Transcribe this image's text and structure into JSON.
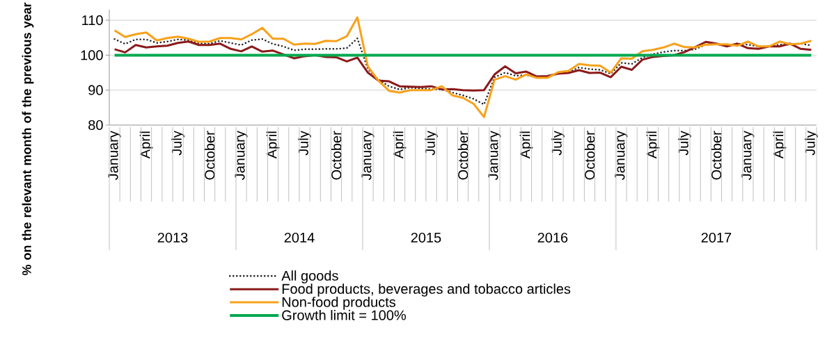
{
  "chart_data": {
    "type": "line",
    "ylabel": "% on the relevant month of the previous year",
    "categories": [
      "January",
      null,
      null,
      "April",
      null,
      null,
      "July",
      null,
      null,
      "October",
      null,
      null,
      "January",
      null,
      null,
      "April",
      null,
      null,
      "July",
      null,
      null,
      "October",
      null,
      null,
      "January",
      null,
      null,
      "April",
      null,
      null,
      "July",
      null,
      null,
      "October",
      null,
      null,
      "January",
      null,
      null,
      "April",
      null,
      null,
      "July",
      null,
      null,
      "October",
      null,
      null,
      "January",
      null,
      null,
      "April",
      null,
      null,
      "July",
      null,
      null,
      "October",
      null,
      null,
      "January",
      null,
      null,
      "April",
      null,
      null,
      "July"
    ],
    "annotations": [
      "2013",
      "2014",
      "2015",
      "2016",
      "2017"
    ],
    "ylim": [
      80,
      113
    ],
    "yticks": [
      80,
      90,
      100,
      110
    ],
    "grid": "y",
    "legend": "bottom",
    "marker": "none",
    "series": [
      {
        "name": "All goods",
        "color": "#262626",
        "line_style": "dotted",
        "values": [
          104.6,
          103.2,
          104.5,
          104.5,
          103.5,
          103.9,
          104.5,
          104.3,
          103.3,
          103.3,
          104.1,
          103.5,
          102.9,
          104.3,
          104.6,
          103.2,
          102.5,
          101.4,
          101.7,
          101.7,
          101.8,
          101.8,
          102,
          104.8,
          96,
          93,
          91.1,
          90.2,
          90.7,
          90.5,
          90.3,
          90.2,
          89.3,
          88.5,
          87.5,
          85.9,
          93.7,
          95,
          94.1,
          94.3,
          93.7,
          93.9,
          94.7,
          95,
          96.5,
          96,
          95.8,
          94.7,
          97.8,
          97.5,
          99.3,
          100.3,
          100.9,
          101.3,
          101.3,
          101.7,
          103,
          103.1,
          102.7,
          103.3,
          103,
          102.5,
          102.5,
          103,
          103,
          103.3,
          102.8
        ]
      },
      {
        "name": "Food products, beverages and tobacco articles",
        "color": "#8b1a1a",
        "line_style": "solid",
        "values": [
          101.7,
          100.8,
          102.9,
          102.2,
          102.5,
          102.7,
          103.5,
          103.9,
          102.9,
          102.9,
          103.3,
          101.8,
          101.1,
          102.5,
          101,
          101.3,
          100.2,
          99.1,
          99.7,
          100,
          99.5,
          99.4,
          98.2,
          99.3,
          95,
          92.7,
          92.5,
          91.1,
          91,
          90.9,
          91.1,
          90.2,
          90.3,
          90,
          89.9,
          90,
          94.5,
          96.8,
          94.8,
          95.3,
          93.9,
          94,
          94.7,
          94.9,
          95.7,
          94.9,
          95,
          93.7,
          96.7,
          95.8,
          98.7,
          99.5,
          99.8,
          100,
          100.9,
          102.3,
          103.8,
          103.3,
          102.5,
          103.3,
          102,
          101.8,
          102.5,
          102.5,
          103.3,
          101.8,
          101.5
        ]
      },
      {
        "name": "Non-food products",
        "color": "#f7a11a",
        "line_style": "solid",
        "values": [
          107.1,
          105.2,
          106,
          106.5,
          104.2,
          104.9,
          105.3,
          104.7,
          103.8,
          103.9,
          104.9,
          104.9,
          104.5,
          106,
          107.8,
          104.7,
          104.7,
          103,
          103.3,
          103.2,
          104.1,
          104,
          105.4,
          110.8,
          96.7,
          92.7,
          89.8,
          89.3,
          90,
          90,
          90,
          91.1,
          88.5,
          87.8,
          86.1,
          82.3,
          93,
          94,
          93,
          94.5,
          93.5,
          93.5,
          95.1,
          95.5,
          97.5,
          97.1,
          97,
          95,
          99.1,
          99,
          101.1,
          101.5,
          102.2,
          103.3,
          102.3,
          102.2,
          103,
          103.1,
          103.1,
          102.7,
          103.9,
          102.5,
          102.5,
          103.9,
          103.1,
          103.3,
          104.1
        ]
      }
    ],
    "ref_lines": [
      {
        "axis": "y",
        "value": 100,
        "label": "Growth limit = 100%",
        "color": "#00a84f"
      }
    ]
  }
}
